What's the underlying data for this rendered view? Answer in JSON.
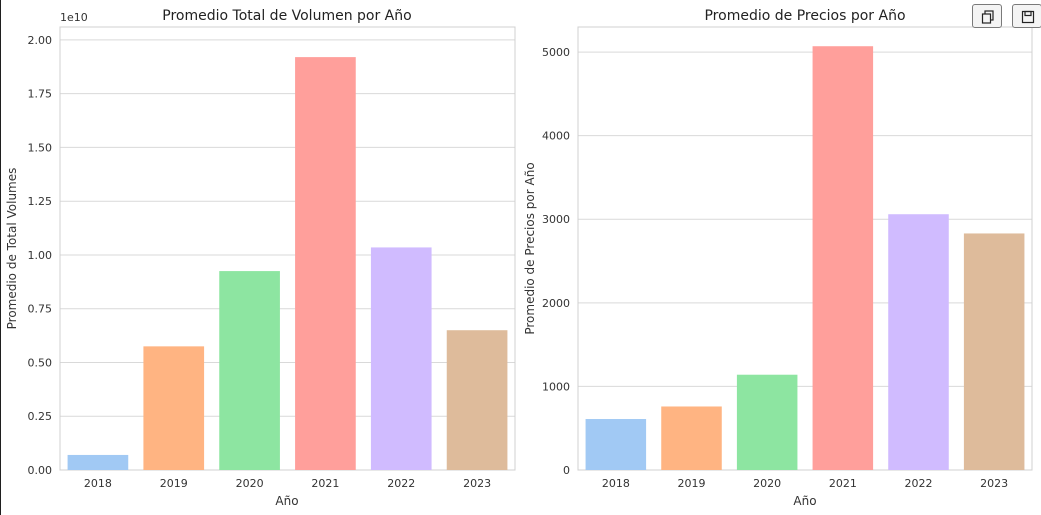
{
  "toolbar": {
    "copy_icon": "copy-icon",
    "save_icon": "save-icon"
  },
  "chart_data": [
    {
      "type": "bar",
      "title": "Promedio Total de Volumen por Año",
      "xlabel": "Año",
      "ylabel": "Promedio de Total Volumes",
      "offset_label": "1e10",
      "categories": [
        "2018",
        "2019",
        "2020",
        "2021",
        "2022",
        "2023"
      ],
      "values": [
        0.07,
        0.575,
        0.925,
        1.92,
        1.035,
        0.65
      ],
      "ylim": [
        0,
        2.06
      ],
      "yticks": [
        0,
        0.25,
        0.5,
        0.75,
        1.0,
        1.25,
        1.5,
        1.75,
        2.0
      ],
      "ytick_labels": [
        "0.00",
        "0.25",
        "0.50",
        "0.75",
        "1.00",
        "1.25",
        "1.50",
        "1.75",
        "2.00"
      ],
      "colors": [
        "#a1c9f4",
        "#ffb482",
        "#8de5a1",
        "#ff9f9b",
        "#d0bbff",
        "#debb9b"
      ],
      "grid": true
    },
    {
      "type": "bar",
      "title": "Promedio de Precios por Año",
      "xlabel": "Año",
      "ylabel": "Promedio de Precios por Año",
      "categories": [
        "2018",
        "2019",
        "2020",
        "2021",
        "2022",
        "2023"
      ],
      "values": [
        610,
        760,
        1140,
        5070,
        3060,
        2830
      ],
      "ylim": [
        0,
        5300
      ],
      "yticks": [
        0,
        1000,
        2000,
        3000,
        4000,
        5000
      ],
      "ytick_labels": [
        "0",
        "1000",
        "2000",
        "3000",
        "4000",
        "5000"
      ],
      "colors": [
        "#a1c9f4",
        "#ffb482",
        "#8de5a1",
        "#ff9f9b",
        "#d0bbff",
        "#debb9b"
      ],
      "grid": true
    }
  ]
}
